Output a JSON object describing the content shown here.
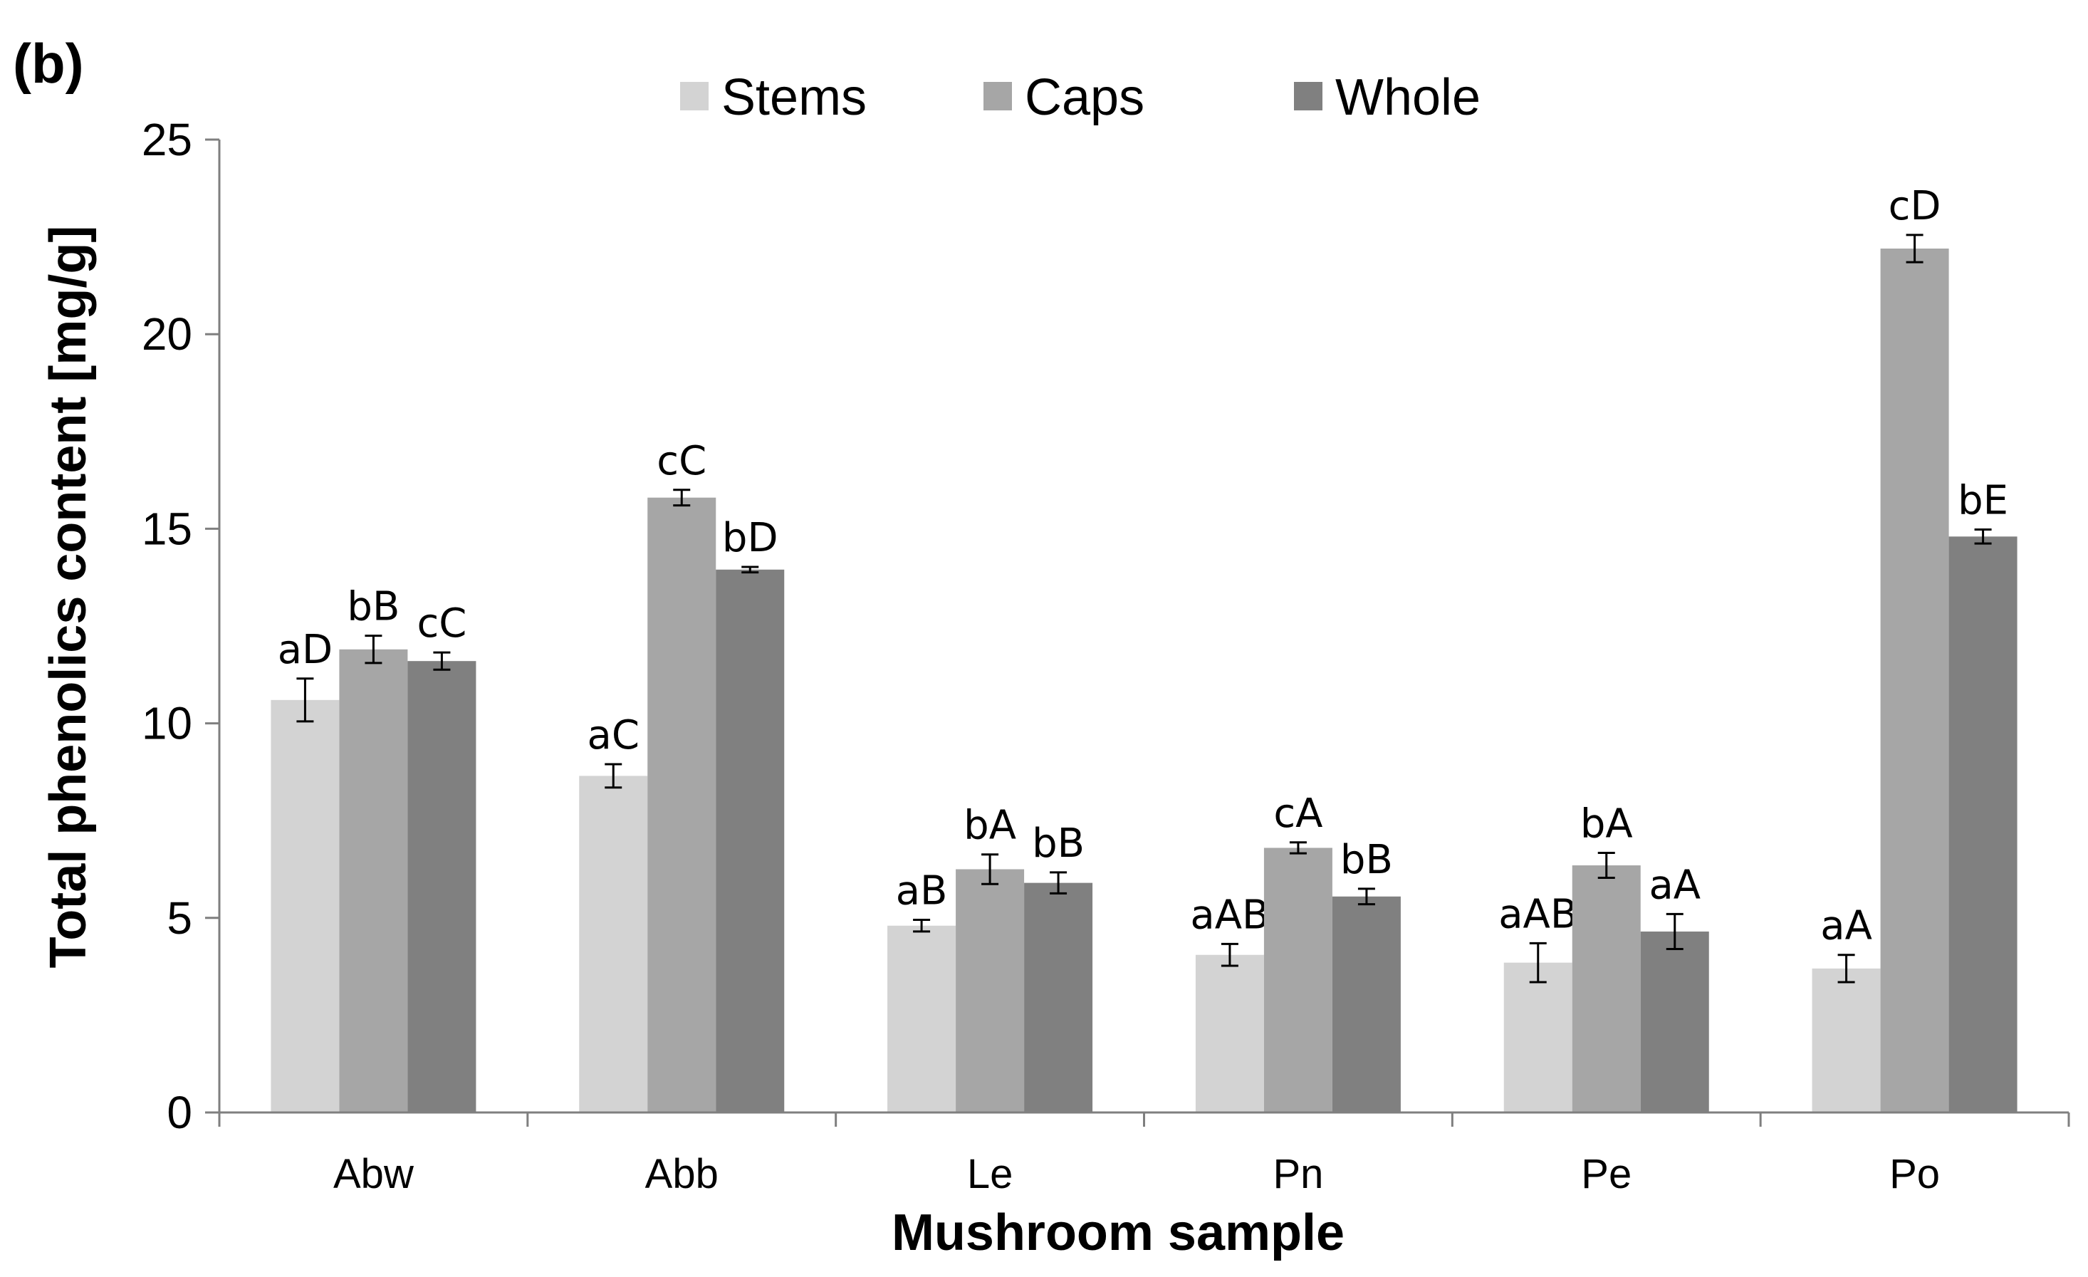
{
  "panel_label": "(b)",
  "colors": {
    "Stems": "#d3d3d3",
    "Caps": "#a6a6a6",
    "Whole": "#808080",
    "axis": "#7f7f7f"
  },
  "chart_data": {
    "type": "bar",
    "title": "",
    "xlabel": "Mushroom sample",
    "ylabel": "Total phenolics content [mg/g]",
    "ylim": [
      0,
      25
    ],
    "yticks": [
      0,
      5,
      10,
      15,
      20,
      25
    ],
    "grid": false,
    "legend_position": "top-center",
    "categories": [
      "Abw",
      "Abb",
      "Le",
      "Pn",
      "Pe",
      "Po"
    ],
    "series": [
      {
        "name": "Stems",
        "values": [
          10.6,
          8.65,
          4.8,
          4.05,
          3.85,
          3.7
        ],
        "errors": [
          0.55,
          0.3,
          0.15,
          0.28,
          0.5,
          0.35
        ],
        "labels": [
          "aD",
          "aC",
          "aB",
          "aAB",
          "aAB",
          "aA"
        ]
      },
      {
        "name": "Caps",
        "values": [
          11.9,
          15.8,
          6.25,
          6.8,
          6.35,
          22.2
        ],
        "errors": [
          0.35,
          0.2,
          0.38,
          0.14,
          0.32,
          0.35
        ],
        "labels": [
          "bB",
          "cC",
          "bA",
          "cA",
          "bA",
          "cD"
        ]
      },
      {
        "name": "Whole",
        "values": [
          11.6,
          13.95,
          5.9,
          5.55,
          4.65,
          14.8
        ],
        "errors": [
          0.22,
          0.07,
          0.27,
          0.2,
          0.45,
          0.18
        ],
        "labels": [
          "cC",
          "bD",
          "bB",
          "bB",
          "aA",
          "bE"
        ]
      }
    ]
  }
}
